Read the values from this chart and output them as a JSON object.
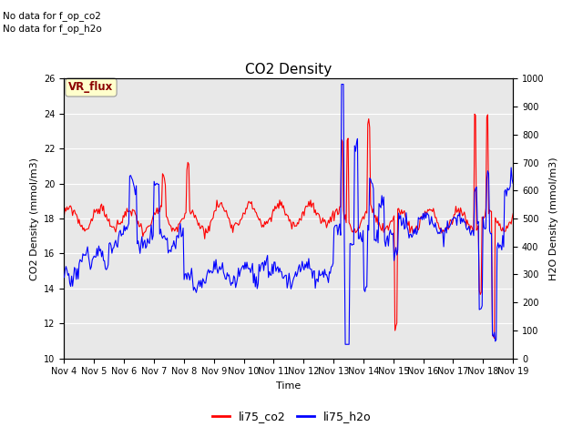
{
  "title": "CO2 Density",
  "xlabel": "Time",
  "ylabel_left": "CO2 Density (mmol/m3)",
  "ylabel_right": "H2O Density (mmol/m3)",
  "annotation_line1": "No data for f_op_co2",
  "annotation_line2": "No data for f_op_h2o",
  "legend_label_text": "VR_flux",
  "legend_entries": [
    "li75_co2",
    "li75_h2o"
  ],
  "xtick_labels": [
    "Nov 4",
    "Nov 5",
    "Nov 6",
    "Nov 7",
    "Nov 8",
    "Nov 9",
    "Nov 10",
    "Nov 11",
    "Nov 12",
    "Nov 13",
    "Nov 14",
    "Nov 15",
    "Nov 16",
    "Nov 17",
    "Nov 18",
    "Nov 19"
  ],
  "ylim_left": [
    10,
    26
  ],
  "ylim_right": [
    0,
    1000
  ],
  "yticks_left": [
    10,
    12,
    14,
    16,
    18,
    20,
    22,
    24,
    26
  ],
  "yticks_right": [
    0,
    100,
    200,
    300,
    400,
    500,
    600,
    700,
    800,
    900,
    1000
  ],
  "background_color": "#e8e8e8",
  "co2_color": "red",
  "h2o_color": "blue",
  "linewidth": 0.8,
  "title_fontsize": 11,
  "axis_fontsize": 8,
  "tick_fontsize": 7
}
